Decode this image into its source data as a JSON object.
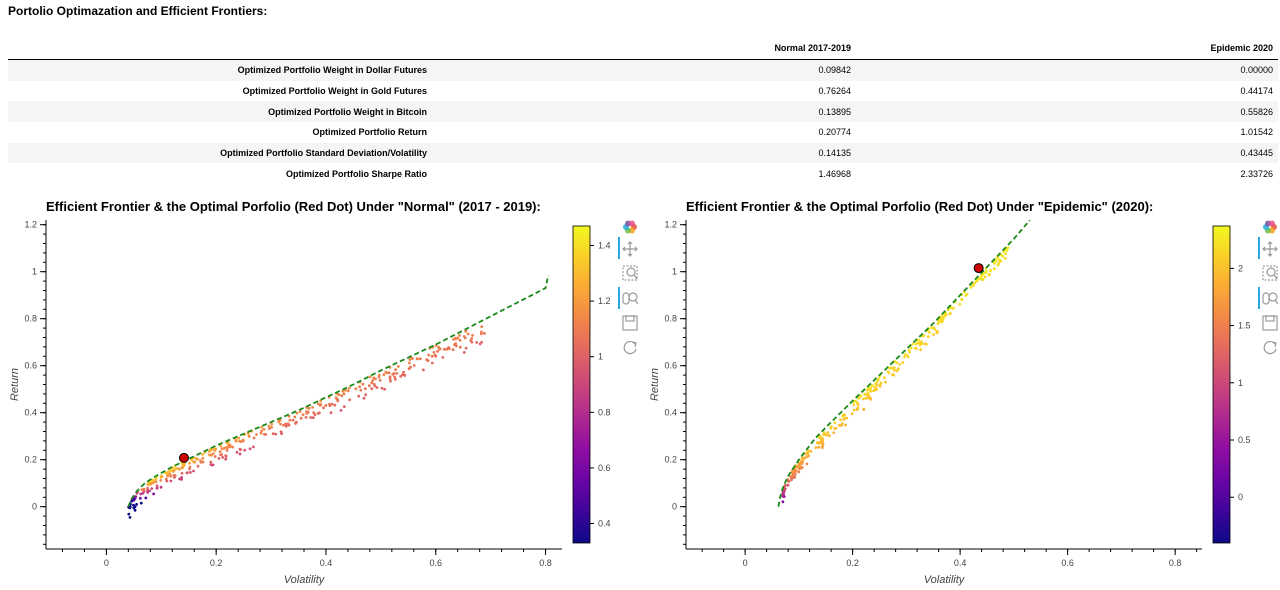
{
  "page_title": "Portolio Optimazation and Efficient Frontiers:",
  "table": {
    "columns": [
      "",
      "Normal 2017-2019",
      "Epidemic 2020"
    ],
    "rows": [
      {
        "label": "Optimized Portfolio Weight in Dollar Futures",
        "normal": "0.09842",
        "epidemic": "0.00000"
      },
      {
        "label": "Optimized Portfolio Weight in Gold Futures",
        "normal": "0.76264",
        "epidemic": "0.44174"
      },
      {
        "label": "Optimized Portfolio Weight in Bitcoin",
        "normal": "0.13895",
        "epidemic": "0.55826"
      },
      {
        "label": "Optimized Portfolio Return",
        "normal": "0.20774",
        "epidemic": "1.01542"
      },
      {
        "label": "Optimized Portfolio Standard Deviation/Volatility",
        "normal": "0.14135",
        "epidemic": "0.43445"
      },
      {
        "label": "Optimized Portfolio Sharpe Ratio",
        "normal": "1.46968",
        "epidemic": "2.33726"
      }
    ]
  },
  "colors": {
    "frontier": "#1a8a1a",
    "optimal_point": "#cc0000",
    "optimal_outline": "#000000",
    "toolbar_active": "#26aae1"
  },
  "toolbar_icons": [
    "bokeh-logo-icon",
    "pan-icon",
    "box-zoom-icon",
    "wheel-zoom-icon",
    "save-icon",
    "reset-icon"
  ],
  "chart_data": [
    {
      "type": "scatter",
      "title": "Efficient Frontier & the Optimal Porfolio (Red Dot) Under \"Normal\" (2017 - 2019):",
      "xlabel": "Volatility",
      "ylabel": "Return",
      "xlim": [
        -0.11,
        0.83
      ],
      "ylim": [
        -0.18,
        1.22
      ],
      "xticks": [
        "0",
        "0.2",
        "0.4",
        "0.6",
        "0.8"
      ],
      "xtick_values": [
        0,
        0.2,
        0.4,
        0.6,
        0.8
      ],
      "yticks": [
        "0",
        "0.2",
        "0.4",
        "0.6",
        "0.8",
        "1",
        "1.2"
      ],
      "ytick_values": [
        0,
        0.2,
        0.4,
        0.6,
        0.8,
        1,
        1.2
      ],
      "colorbar": {
        "min": 0.33,
        "max": 1.47,
        "ticks": [
          "0.4",
          "0.6",
          "0.8",
          "1",
          "1.2",
          "1.4"
        ],
        "tick_values": [
          0.4,
          0.6,
          0.8,
          1.0,
          1.2,
          1.4
        ],
        "palette": "plasma"
      },
      "frontier": {
        "x": [
          0.04,
          0.045,
          0.055,
          0.07,
          0.09,
          0.12,
          0.16,
          0.2,
          0.25,
          0.3,
          0.35,
          0.4,
          0.45,
          0.5,
          0.55,
          0.6,
          0.65,
          0.7,
          0.75,
          0.8,
          0.805
        ],
        "y": [
          0.0,
          0.03,
          0.065,
          0.1,
          0.13,
          0.17,
          0.215,
          0.26,
          0.31,
          0.36,
          0.41,
          0.465,
          0.52,
          0.58,
          0.635,
          0.69,
          0.75,
          0.81,
          0.87,
          0.93,
          0.985
        ]
      },
      "cloud": {
        "curve_x": [
          0.04,
          0.06,
          0.1,
          0.15,
          0.2,
          0.3,
          0.4,
          0.5,
          0.6,
          0.7
        ],
        "curve_y": [
          0.0,
          0.06,
          0.12,
          0.175,
          0.23,
          0.33,
          0.435,
          0.535,
          0.64,
          0.75
        ],
        "xmin": 0.04,
        "xmax": 0.69,
        "spread": 0.06,
        "count": 360,
        "seed": 11
      },
      "optimal": {
        "x": 0.14135,
        "y": 0.20774
      }
    },
    {
      "type": "scatter",
      "title": "Efficient Frontier & the Optimal Porfolio (Red Dot) Under  \"Epidemic\" (2020):",
      "xlabel": "Volatility",
      "ylabel": "Return",
      "xlim": [
        -0.11,
        0.85
      ],
      "ylim": [
        -0.18,
        1.22
      ],
      "xticks": [
        "0",
        "0.2",
        "0.4",
        "0.6",
        "0.8"
      ],
      "xtick_values": [
        0,
        0.2,
        0.4,
        0.6,
        0.8
      ],
      "yticks": [
        "0",
        "0.2",
        "0.4",
        "0.6",
        "0.8",
        "1",
        "1.2"
      ],
      "ytick_values": [
        0,
        0.2,
        0.4,
        0.6,
        0.8,
        1,
        1.2
      ],
      "colorbar": {
        "min": -0.4,
        "max": 2.37,
        "ticks": [
          "0",
          "0.5",
          "1",
          "1.5",
          "2"
        ],
        "tick_values": [
          0,
          0.5,
          1.0,
          1.5,
          2.0
        ],
        "palette": "plasma"
      },
      "frontier": {
        "x": [
          0.062,
          0.065,
          0.07,
          0.08,
          0.1,
          0.13,
          0.16,
          0.2,
          0.25,
          0.3,
          0.35,
          0.4,
          0.45,
          0.5,
          0.53
        ],
        "y": [
          0.0,
          0.04,
          0.08,
          0.13,
          0.2,
          0.29,
          0.36,
          0.45,
          0.56,
          0.67,
          0.78,
          0.9,
          1.02,
          1.14,
          1.22
        ]
      },
      "cloud": {
        "curve_x": [
          0.062,
          0.08,
          0.1,
          0.15,
          0.2,
          0.3,
          0.4,
          0.5
        ],
        "curve_y": [
          0.0,
          0.1,
          0.17,
          0.29,
          0.4,
          0.63,
          0.87,
          1.13
        ],
        "xmin": 0.07,
        "xmax": 0.49,
        "spread": 0.04,
        "count": 300,
        "seed": 7
      },
      "optimal": {
        "x": 0.43445,
        "y": 1.01542
      }
    }
  ]
}
